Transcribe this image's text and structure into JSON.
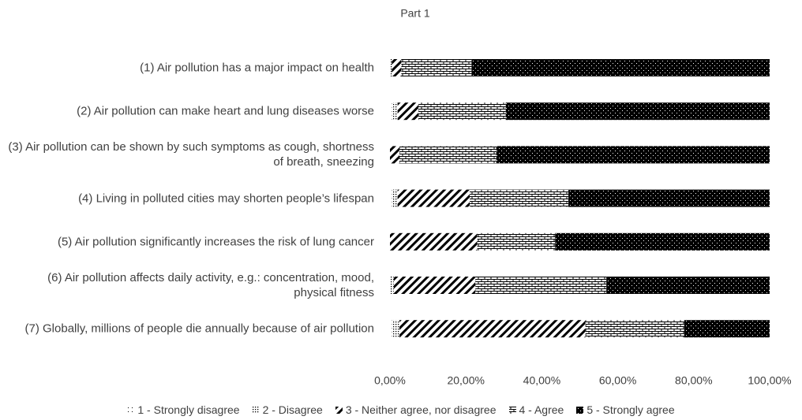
{
  "chart_data": {
    "type": "stacked_barh",
    "title": "Part 1",
    "categories": [
      "(1) Air pollution has a major impact on health",
      "(2) Air pollution can make heart and lung diseases worse",
      "(3) Air pollution can be shown by such symptoms as cough, shortness of breath, sneezing",
      "(4) Living in polluted cities may shorten people’s lifespan",
      "(5) Air pollution significantly increases the risk of lung cancer",
      "(6) Air pollution affects daily activity, e.g.: concentration, mood, physical fitness",
      "(7) Globally, millions of people die annually because of air pollution"
    ],
    "series": [
      {
        "name": "1 - Strongly disagree",
        "color": "#000000",
        "pattern": "sparse-dots",
        "values": [
          0,
          0.5,
          0,
          0.5,
          0,
          0,
          0.5
        ]
      },
      {
        "name": "2 - Disagree",
        "color": "#000000",
        "pattern": "dense-dots",
        "values": [
          0.5,
          1.5,
          0,
          1.5,
          0,
          1,
          2
        ]
      },
      {
        "name": "3 - Neither agree, nor disagree",
        "color": "#000000",
        "pattern": "diagonal",
        "values": [
          2.5,
          5.5,
          2.5,
          19,
          23,
          21.5,
          49
        ]
      },
      {
        "name": "4 - Agree",
        "color": "#000000",
        "pattern": "brick",
        "values": [
          18.5,
          23,
          25.5,
          26,
          20.5,
          34.5,
          26
        ]
      },
      {
        "name": "5 - Strongly agree",
        "color": "#000000",
        "pattern": "solid-dots",
        "values": [
          78.5,
          69.5,
          72,
          53,
          56.5,
          43,
          22.5
        ]
      }
    ],
    "xlim": [
      0,
      100
    ],
    "xticks": [
      {
        "value": 0,
        "label": "0,00%"
      },
      {
        "value": 20,
        "label": "20,00%"
      },
      {
        "value": 40,
        "label": "40,00%"
      },
      {
        "value": 60,
        "label": "60,00%"
      },
      {
        "value": 80,
        "label": "80,00%"
      },
      {
        "value": 100,
        "label": "100,00%"
      }
    ],
    "legend": "bottom"
  }
}
